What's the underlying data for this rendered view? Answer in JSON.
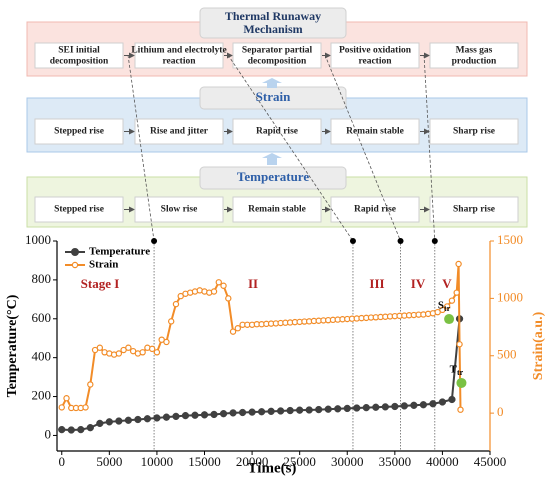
{
  "diagram": {
    "rows": [
      {
        "title": "Thermal Runaway Mechanism",
        "boxes": [
          "SEI initial decomposition",
          "Lithium and electrolyte reaction",
          "Separator partial decomposition",
          "Positive oxidation reaction",
          "Mass gas production"
        ]
      },
      {
        "title": "Strain",
        "boxes": [
          "Stepped rise",
          "Rise  and jitter",
          "Rapid rise",
          "Remain stable",
          "Sharp rise"
        ]
      },
      {
        "title": "Temperature",
        "boxes": [
          "Stepped rise",
          "Slow rise",
          "Remain stable",
          "Rapid rise",
          "Sharp rise"
        ]
      }
    ]
  },
  "chart_data": {
    "type": "line",
    "x_label": "Time(s)",
    "y_label": "Temperature(°C)",
    "y2_label": "Strain(a.u.)",
    "xlim": [
      -500,
      45000
    ],
    "xticks": [
      0,
      5000,
      10000,
      15000,
      20000,
      25000,
      30000,
      35000,
      40000,
      45000
    ],
    "ylim": [
      -80,
      1000
    ],
    "yticks": [
      0,
      200,
      400,
      600,
      800,
      1000
    ],
    "y2lim": [
      -330,
      1500
    ],
    "y2ticks": [
      0,
      500,
      1000,
      1500
    ],
    "legend": "upper left",
    "stages": [
      "Stage  I",
      "II",
      "III",
      "IV",
      "V"
    ],
    "stage_boundaries": [
      9700,
      30600,
      35600,
      39200
    ],
    "transition_points": [
      {
        "label": "S",
        "sub": "tr",
        "x": 40700,
        "y": 820,
        "axis": "y2",
        "color": "#7ac143"
      },
      {
        "label": "T",
        "sub": "tr",
        "x": 42000,
        "y": 270,
        "color": "#7ac143"
      }
    ],
    "series": [
      {
        "name": "Temperature",
        "color": "#404040",
        "x": [
          0,
          1000,
          2000,
          3000,
          4000,
          5000,
          6000,
          7000,
          8000,
          9000,
          10000,
          11000,
          12000,
          13000,
          14000,
          15000,
          16000,
          17000,
          18000,
          19000,
          20000,
          21000,
          22000,
          23000,
          24000,
          25000,
          26000,
          27000,
          28000,
          29000,
          30000,
          31000,
          32000,
          33000,
          34000,
          35000,
          36000,
          37000,
          38000,
          39000,
          40000,
          41000,
          41800
        ],
        "values": [
          30,
          28,
          30,
          40,
          62,
          70,
          74,
          78,
          82,
          86,
          90,
          94,
          98,
          102,
          104,
          106,
          108,
          112,
          116,
          118,
          120,
          122,
          124,
          126,
          128,
          130,
          131,
          133,
          135,
          137,
          139,
          141,
          143,
          145,
          147,
          149,
          152,
          155,
          158,
          163,
          172,
          185,
          600
        ]
      },
      {
        "name": "Strain",
        "color": "#f28c28",
        "axis": "y2",
        "x": [
          0,
          500,
          1000,
          1500,
          2000,
          2500,
          3000,
          3500,
          4000,
          4500,
          5000,
          5500,
          6000,
          6500,
          7000,
          7500,
          8000,
          8500,
          9000,
          9500,
          10000,
          10500,
          11000,
          11500,
          12000,
          12500,
          13000,
          13500,
          14000,
          14500,
          15000,
          15500,
          16000,
          16500,
          17000,
          17500,
          18000,
          18500,
          19000,
          19500,
          20000,
          20500,
          21000,
          21500,
          22000,
          22500,
          23000,
          23500,
          24000,
          24500,
          25000,
          25500,
          26000,
          26500,
          27000,
          27500,
          28000,
          28500,
          29000,
          29500,
          30000,
          30500,
          31000,
          31500,
          32000,
          32500,
          33000,
          33500,
          34000,
          34500,
          35000,
          35500,
          36000,
          36500,
          37000,
          37500,
          38000,
          38500,
          39000,
          39500,
          40000,
          40500,
          41000,
          41500,
          41700,
          41800,
          41900
        ],
        "values": [
          50,
          130,
          45,
          45,
          45,
          50,
          250,
          550,
          570,
          530,
          520,
          510,
          520,
          550,
          570,
          540,
          520,
          530,
          570,
          560,
          530,
          640,
          620,
          800,
          950,
          1020,
          1040,
          1050,
          1060,
          1070,
          1060,
          1050,
          1060,
          1140,
          1110,
          1000,
          710,
          740,
          770,
          770,
          770,
          775,
          775,
          778,
          780,
          782,
          785,
          788,
          790,
          793,
          795,
          798,
          800,
          803,
          805,
          808,
          810,
          813,
          815,
          818,
          820,
          823,
          825,
          828,
          830,
          833,
          835,
          838,
          840,
          843,
          845,
          848,
          850,
          853,
          855,
          858,
          860,
          865,
          870,
          880,
          900,
          930,
          980,
          1050,
          1300,
          600,
          30
        ]
      }
    ]
  }
}
